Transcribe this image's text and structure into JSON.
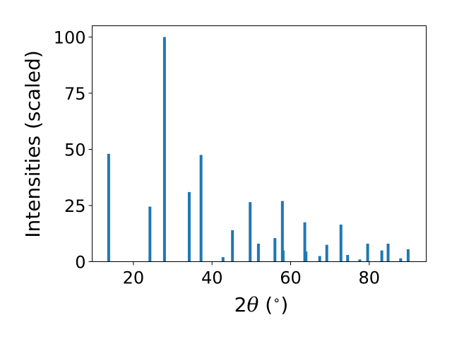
{
  "chart_data": {
    "type": "bar",
    "xlabel_prefix": "2",
    "xlabel_symbol": "θ",
    "xlabel_unit": " (",
    "xlabel_unit_sym": "∘",
    "xlabel_close": ")",
    "ylabel": "Intensities (scaled)",
    "xlim": [
      9.5,
      94.5
    ],
    "ylim": [
      0,
      105
    ],
    "xticks": [
      20,
      40,
      60,
      80
    ],
    "yticks": [
      0,
      25,
      50,
      75,
      100
    ],
    "grid": false,
    "bar_color": "#1f77b4",
    "bars": [
      {
        "x": 13.7,
        "y": 48
      },
      {
        "x": 24.2,
        "y": 24.5
      },
      {
        "x": 27.9,
        "y": 100
      },
      {
        "x": 34.2,
        "y": 31
      },
      {
        "x": 37.2,
        "y": 47.5
      },
      {
        "x": 42.8,
        "y": 2
      },
      {
        "x": 45.2,
        "y": 14
      },
      {
        "x": 49.7,
        "y": 26.5
      },
      {
        "x": 51.8,
        "y": 8
      },
      {
        "x": 56.0,
        "y": 10.5
      },
      {
        "x": 57.9,
        "y": 27
      },
      {
        "x": 58.1,
        "y": 5
      },
      {
        "x": 63.6,
        "y": 17.5
      },
      {
        "x": 63.9,
        "y": 4.5
      },
      {
        "x": 67.4,
        "y": 2.5
      },
      {
        "x": 69.2,
        "y": 7.5
      },
      {
        "x": 72.8,
        "y": 16.5
      },
      {
        "x": 74.5,
        "y": 3
      },
      {
        "x": 77.6,
        "y": 1
      },
      {
        "x": 79.6,
        "y": 8
      },
      {
        "x": 83.2,
        "y": 5
      },
      {
        "x": 84.8,
        "y": 8
      },
      {
        "x": 88.0,
        "y": 1.5
      },
      {
        "x": 89.9,
        "y": 5.5
      }
    ]
  }
}
